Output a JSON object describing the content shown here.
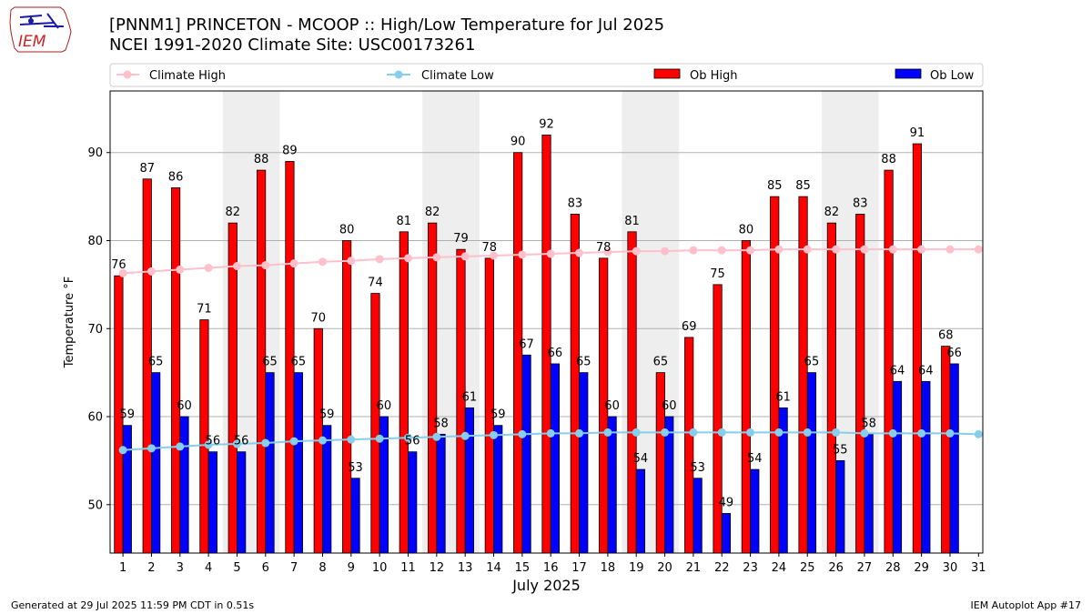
{
  "header": {
    "title_line1": "[PNNM1] PRINCETON - MCOOP :: High/Low Temperature for Jul 2025",
    "title_line2": "NCEI 1991-2020 Climate Site: USC00173261",
    "logo_text": "IEM"
  },
  "footer": {
    "generated": "Generated at 29 Jul 2025 11:59 PM CDT in 0.51s",
    "app": "IEM Autoplot App #17"
  },
  "colors": {
    "ob_high": "#ff0000",
    "ob_low": "#0000ff",
    "climate_high": "#ffc0cb",
    "climate_low": "#87ceeb",
    "weekend_shade": "#eeeeee",
    "grid": "#b0b0b0"
  },
  "chart_data": {
    "type": "bar",
    "xlabel": "July 2025",
    "ylabel": "Temperature °F",
    "ylim": [
      44.5,
      97
    ],
    "yticks": [
      50,
      60,
      70,
      80,
      90
    ],
    "grid": "horizontal",
    "legend_position": "top",
    "categories": [
      "1",
      "2",
      "3",
      "4",
      "5",
      "6",
      "7",
      "8",
      "9",
      "10",
      "11",
      "12",
      "13",
      "14",
      "15",
      "16",
      "17",
      "18",
      "19",
      "20",
      "21",
      "22",
      "23",
      "24",
      "25",
      "26",
      "27",
      "28",
      "29",
      "30",
      "31"
    ],
    "shaded_days": [
      [
        5,
        6
      ],
      [
        12,
        13
      ],
      [
        19,
        20
      ],
      [
        26,
        27
      ]
    ],
    "series": [
      {
        "name": "Ob High",
        "kind": "bar",
        "values": [
          76,
          87,
          86,
          71,
          82,
          88,
          89,
          70,
          80,
          74,
          81,
          82,
          79,
          78,
          90,
          92,
          83,
          78,
          81,
          65,
          69,
          75,
          80,
          85,
          85,
          82,
          83,
          88,
          91,
          68,
          null
        ],
        "labels": [
          76,
          87,
          86,
          71,
          82,
          88,
          89,
          70,
          80,
          74,
          81,
          82,
          79,
          78,
          90,
          92,
          83,
          78,
          81,
          65,
          69,
          75,
          80,
          85,
          85,
          82,
          83,
          88,
          91,
          68,
          null
        ]
      },
      {
        "name": "Ob Low",
        "kind": "bar",
        "values": [
          59,
          65,
          60,
          56,
          56,
          65,
          65,
          59,
          53,
          60,
          56,
          58,
          61,
          59,
          67,
          66,
          65,
          60,
          54,
          60,
          53,
          49,
          54,
          61,
          65,
          55,
          58,
          64,
          64,
          66,
          null
        ],
        "labels": [
          59,
          65,
          60,
          56,
          56,
          65,
          65,
          59,
          53,
          60,
          56,
          58,
          61,
          59,
          67,
          66,
          65,
          60,
          54,
          60,
          53,
          49,
          54,
          61,
          65,
          55,
          58,
          64,
          64,
          66,
          null
        ]
      },
      {
        "name": "Climate High",
        "kind": "line",
        "values": [
          76.3,
          76.5,
          76.7,
          76.9,
          77.1,
          77.2,
          77.4,
          77.6,
          77.7,
          77.9,
          78.0,
          78.1,
          78.2,
          78.3,
          78.4,
          78.5,
          78.6,
          78.7,
          78.8,
          78.8,
          78.9,
          78.9,
          78.9,
          79.0,
          79.0,
          79.0,
          79.0,
          79.0,
          79.0,
          79.0,
          79.0
        ]
      },
      {
        "name": "Climate Low",
        "kind": "line",
        "values": [
          56.2,
          56.4,
          56.6,
          56.8,
          56.9,
          57.0,
          57.2,
          57.3,
          57.4,
          57.5,
          57.6,
          57.7,
          57.8,
          57.9,
          58.0,
          58.1,
          58.1,
          58.2,
          58.2,
          58.2,
          58.2,
          58.2,
          58.2,
          58.2,
          58.2,
          58.2,
          58.1,
          58.1,
          58.1,
          58.1,
          58.0
        ]
      }
    ]
  }
}
